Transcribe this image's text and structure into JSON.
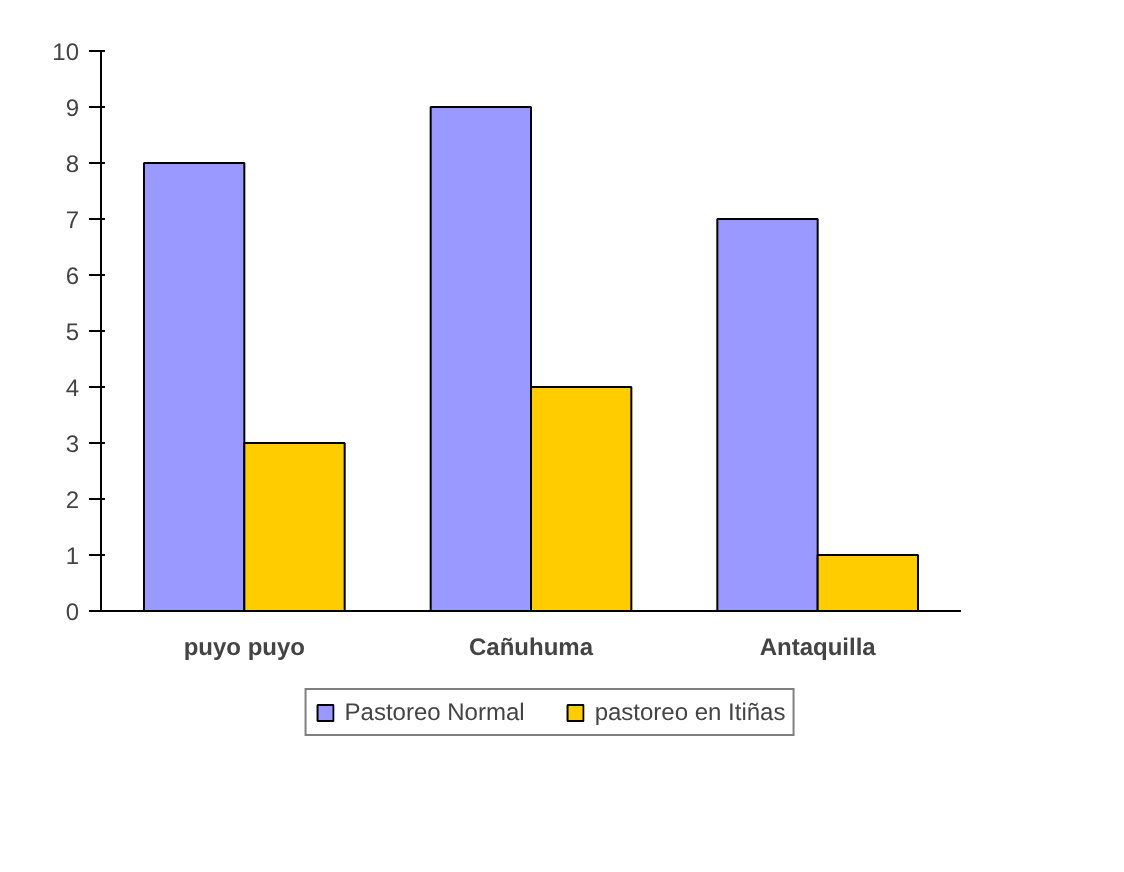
{
  "chart_data": {
    "type": "bar",
    "categories": [
      "puyo puyo",
      "Cañuhuma",
      "Antaquilla"
    ],
    "series": [
      {
        "name": "Pastoreo Normal",
        "color": "#9999ff",
        "values": [
          8,
          9,
          7
        ]
      },
      {
        "name": "pastoreo en Itiñas",
        "color": "#ffcc00",
        "values": [
          3,
          4,
          1
        ]
      }
    ],
    "ylim": [
      0,
      10
    ],
    "yticks": [
      0,
      1,
      2,
      3,
      4,
      5,
      6,
      7,
      8,
      9,
      10
    ],
    "grid": false,
    "legend": "bottom"
  }
}
